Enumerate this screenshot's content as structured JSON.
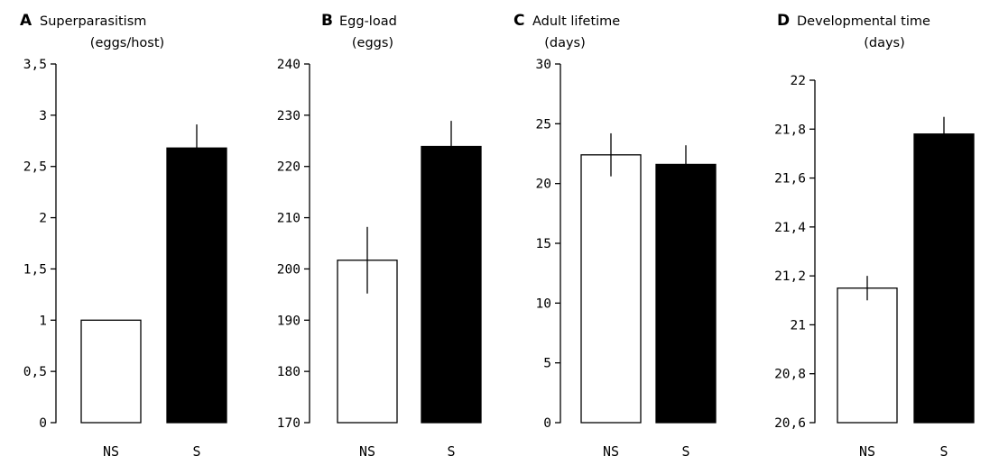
{
  "chart_data": [
    {
      "type": "bar",
      "panel": "A",
      "title": "Superparasitism",
      "subtitle": "(eggs/host)",
      "categories": [
        "NS",
        "S"
      ],
      "values": [
        1.0,
        2.68
      ],
      "errors": [
        0,
        0.23
      ],
      "fills": [
        "#ffffff",
        "#000000"
      ],
      "ylim": [
        0,
        3.5
      ],
      "yticks": [
        "0",
        "0,5",
        "1",
        "1,5",
        "2",
        "2,5",
        "3",
        "3,5"
      ],
      "ytick_values": [
        0,
        0.5,
        1,
        1.5,
        2,
        2.5,
        3,
        3.5
      ]
    },
    {
      "type": "bar",
      "panel": "B",
      "title": "Egg-load",
      "subtitle": "(eggs)",
      "categories": [
        "NS",
        "S"
      ],
      "values": [
        201.7,
        223.9
      ],
      "errors": [
        6.5,
        5.0
      ],
      "fills": [
        "#ffffff",
        "#000000"
      ],
      "ylim": [
        170,
        240
      ],
      "yticks": [
        "170",
        "180",
        "190",
        "200",
        "210",
        "220",
        "230",
        "240"
      ],
      "ytick_values": [
        170,
        180,
        190,
        200,
        210,
        220,
        230,
        240
      ]
    },
    {
      "type": "bar",
      "panel": "C",
      "title": "Adult lifetime",
      "subtitle": "(days)",
      "categories": [
        "NS",
        "S"
      ],
      "values": [
        22.4,
        21.6
      ],
      "errors": [
        1.8,
        1.6
      ],
      "fills": [
        "#ffffff",
        "#000000"
      ],
      "ylim": [
        0,
        30
      ],
      "yticks": [
        "0",
        "5",
        "10",
        "15",
        "20",
        "25",
        "30"
      ],
      "ytick_values": [
        0,
        5,
        10,
        15,
        20,
        25,
        30
      ]
    },
    {
      "type": "bar",
      "panel": "D",
      "title": "Developmental time",
      "subtitle": "(days)",
      "categories": [
        "NS",
        "S"
      ],
      "values": [
        21.15,
        21.78
      ],
      "errors": [
        0.05,
        0.07
      ],
      "fills": [
        "#ffffff",
        "#000000"
      ],
      "ylim": [
        20.6,
        22
      ],
      "yticks": [
        "20,6",
        "20,8",
        "21",
        "21,2",
        "21,4",
        "21,6",
        "21,8",
        "22"
      ],
      "ytick_values": [
        20.6,
        20.8,
        21.0,
        21.2,
        21.4,
        21.6,
        21.8,
        22.0
      ]
    }
  ]
}
